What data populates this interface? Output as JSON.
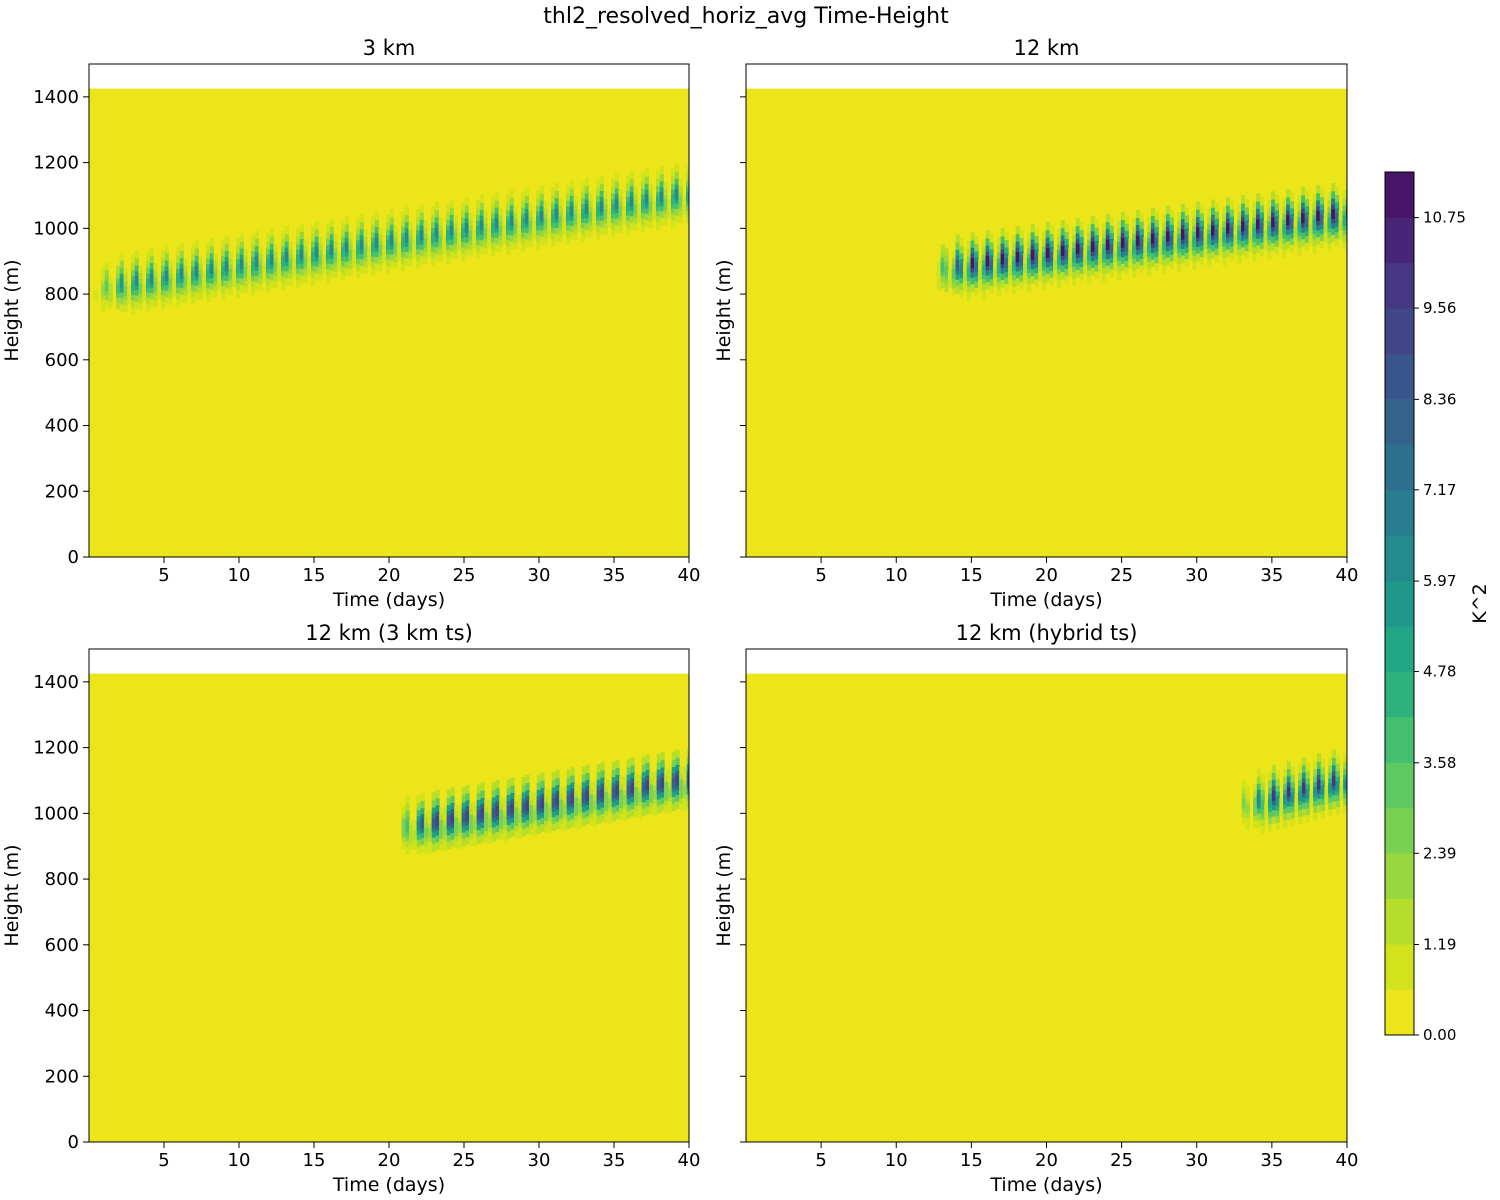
{
  "chart_data": {
    "type": "heatmap",
    "title": "thl2_resolved_horiz_avg Time-Height",
    "xlim": [
      0,
      40
    ],
    "ylim": [
      0,
      1500
    ],
    "data_top_height": 1425,
    "x_ticks": [
      5,
      10,
      15,
      20,
      25,
      30,
      35,
      40
    ],
    "y_ticks": [
      0,
      200,
      400,
      600,
      800,
      1000,
      1200,
      1400
    ],
    "xlabel": "Time (days)",
    "ylabel": "Height (m)",
    "background_value": 0.0,
    "colorbar": {
      "label": "K^2",
      "vmin": 0.0,
      "vmax": 11.35,
      "tick_values": [
        0.0,
        1.19,
        2.39,
        3.58,
        4.78,
        5.97,
        7.17,
        8.36,
        9.56,
        10.75
      ],
      "tick_labels": [
        "0.00",
        "1.19",
        "2.39",
        "3.58",
        "4.78",
        "5.97",
        "7.17",
        "8.36",
        "9.56",
        "10.75"
      ],
      "levels": 19,
      "colors": [
        "#ebe51a",
        "#d2e21b",
        "#b5de2b",
        "#98d83e",
        "#7ad151",
        "#5ec962",
        "#44bf70",
        "#2db27d",
        "#21a585",
        "#1f988b",
        "#238a8d",
        "#287d8e",
        "#2d708e",
        "#33638d",
        "#39558c",
        "#404688",
        "#453781",
        "#482576",
        "#481467"
      ]
    },
    "panels": [
      {
        "title": "3 km",
        "onset_day": 0.3,
        "onset_height": 800,
        "end_height": 1090,
        "peak_value": 6.2
      },
      {
        "title": "12 km",
        "onset_day": 12.7,
        "onset_height": 860,
        "end_height": 1030,
        "peak_value": 11.2
      },
      {
        "title": "12 km (3 km ts)",
        "onset_day": 20.6,
        "onset_height": 940,
        "end_height": 1090,
        "peak_value": 10.0
      },
      {
        "title": "12 km (hybrid ts)",
        "onset_day": 33.0,
        "onset_height": 1010,
        "end_height": 1090,
        "peak_value": 9.8
      }
    ]
  }
}
